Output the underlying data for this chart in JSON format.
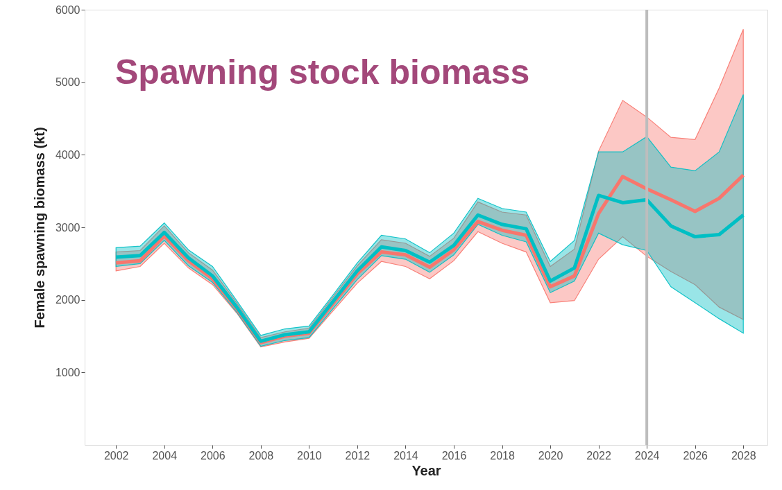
{
  "chart_data": {
    "type": "line",
    "title": "Spawning stock biomass",
    "xlabel": "Year",
    "ylabel": "Female spawning biomass (kt)",
    "x": [
      2002,
      2003,
      2004,
      2005,
      2006,
      2007,
      2008,
      2009,
      2010,
      2011,
      2012,
      2013,
      2014,
      2015,
      2016,
      2017,
      2018,
      2019,
      2020,
      2021,
      2022,
      2023,
      2024,
      2025,
      2026,
      2027,
      2028
    ],
    "series": [
      {
        "color": "#f8766d",
        "values": [
          2510,
          2540,
          2880,
          2540,
          2290,
          1880,
          1410,
          1500,
          1540,
          1950,
          2360,
          2660,
          2620,
          2450,
          2690,
          3080,
          2960,
          2890,
          2180,
          2330,
          3190,
          3700,
          3530,
          3380,
          3220,
          3400,
          3720
        ],
        "lower": [
          2400,
          2460,
          2780,
          2440,
          2210,
          1820,
          1350,
          1420,
          1470,
          1850,
          2230,
          2530,
          2460,
          2290,
          2540,
          2940,
          2780,
          2660,
          1960,
          1990,
          2560,
          2870,
          2600,
          2390,
          2210,
          1900,
          1730
        ],
        "upper": [
          2660,
          2680,
          3020,
          2650,
          2410,
          1960,
          1480,
          1560,
          1610,
          2040,
          2470,
          2830,
          2780,
          2600,
          2850,
          3350,
          3210,
          3170,
          2460,
          2700,
          4050,
          4750,
          4520,
          4240,
          4210,
          4920,
          5730
        ]
      },
      {
        "color": "#00bfc4",
        "values": [
          2590,
          2610,
          2930,
          2580,
          2330,
          1900,
          1430,
          1520,
          1560,
          1980,
          2400,
          2730,
          2680,
          2520,
          2750,
          3170,
          3040,
          2980,
          2260,
          2440,
          3440,
          3340,
          3380,
          3020,
          2870,
          2900,
          3170
        ],
        "lower": [
          2460,
          2500,
          2820,
          2470,
          2240,
          1830,
          1360,
          1440,
          1480,
          1880,
          2280,
          2610,
          2560,
          2380,
          2620,
          3040,
          2890,
          2800,
          2100,
          2260,
          2920,
          2760,
          2680,
          2180,
          1960,
          1740,
          1540
        ],
        "upper": [
          2720,
          2740,
          3060,
          2690,
          2460,
          1990,
          1510,
          1600,
          1640,
          2070,
          2510,
          2890,
          2840,
          2650,
          2920,
          3400,
          3260,
          3210,
          2530,
          2820,
          4040,
          4040,
          4250,
          3830,
          3780,
          4040,
          4830
        ]
      }
    ],
    "xlim": [
      2000.7,
      2029.0
    ],
    "xticks": [
      2002,
      2004,
      2006,
      2008,
      2010,
      2012,
      2014,
      2016,
      2018,
      2020,
      2022,
      2024,
      2026,
      2028
    ],
    "ylim": [
      0,
      6000
    ],
    "yticks": [
      1000,
      2000,
      3000,
      4000,
      5000,
      6000
    ],
    "ref_lines": [
      {
        "axis": "x",
        "value": 2024,
        "color": "#bdbdbd"
      }
    ],
    "line_style": "solid",
    "marker": "none"
  }
}
